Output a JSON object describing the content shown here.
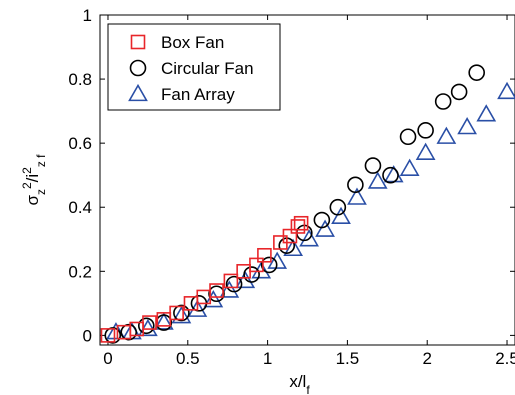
{
  "chart_data": {
    "type": "scatter",
    "xlabel": "x/l",
    "xlabel_sub": "f",
    "ylabel_parts": [
      {
        "t": "σ",
        "s": "base"
      },
      {
        "t": "z",
        "s": "sub"
      },
      {
        "t": "2",
        "s": "sup"
      },
      {
        "t": "/i",
        "s": "base"
      },
      {
        "t": "2",
        "s": "sup"
      },
      {
        "t": "z f",
        "s": "sub"
      }
    ],
    "xlim": [
      -0.05,
      2.55
    ],
    "ylim": [
      -0.03,
      1.0
    ],
    "x_ticks": [
      0,
      0.5,
      1,
      1.5,
      2,
      2.5
    ],
    "x_tick_labels": [
      "0",
      "0.5",
      "1",
      "1.5",
      "2",
      "2.5"
    ],
    "y_ticks": [
      0,
      0.2,
      0.4,
      0.6,
      0.8,
      1
    ],
    "y_tick_labels": [
      "0",
      "0.2",
      "0.4",
      "0.6",
      "0.8",
      "1"
    ],
    "grid": false,
    "legend_position": "top-left",
    "series": [
      {
        "name": "Box Fan",
        "marker": "square",
        "color": "#e8262a",
        "x": [
          0.0,
          0.1,
          0.18,
          0.26,
          0.35,
          0.43,
          0.52,
          0.6,
          0.68,
          0.77,
          0.85,
          0.93,
          0.98,
          1.08,
          1.14,
          1.19,
          1.21
        ],
        "y": [
          0.0,
          0.01,
          0.02,
          0.04,
          0.05,
          0.07,
          0.1,
          0.12,
          0.14,
          0.17,
          0.2,
          0.22,
          0.25,
          0.29,
          0.31,
          0.34,
          0.35
        ]
      },
      {
        "name": "Circular Fan",
        "marker": "circle",
        "color": "#000000",
        "x": [
          0.03,
          0.13,
          0.24,
          0.35,
          0.46,
          0.57,
          0.68,
          0.79,
          0.9,
          1.01,
          1.12,
          1.23,
          1.34,
          1.44,
          1.55,
          1.66,
          1.77,
          1.88,
          1.99,
          2.1,
          2.2,
          2.31
        ],
        "y": [
          0.0,
          0.01,
          0.03,
          0.04,
          0.07,
          0.1,
          0.13,
          0.16,
          0.19,
          0.22,
          0.28,
          0.32,
          0.36,
          0.4,
          0.47,
          0.53,
          0.5,
          0.62,
          0.64,
          0.73,
          0.76,
          0.82
        ]
      },
      {
        "name": "Fan Array",
        "marker": "triangle",
        "color": "#2a4fa6",
        "x": [
          0.05,
          0.15,
          0.25,
          0.35,
          0.46,
          0.56,
          0.66,
          0.76,
          0.86,
          0.96,
          1.06,
          1.16,
          1.26,
          1.36,
          1.46,
          1.56,
          1.69,
          1.79,
          1.89,
          1.99,
          2.12,
          2.25,
          2.37,
          2.5
        ],
        "y": [
          0.01,
          0.01,
          0.02,
          0.04,
          0.06,
          0.08,
          0.11,
          0.14,
          0.17,
          0.2,
          0.23,
          0.27,
          0.3,
          0.33,
          0.37,
          0.43,
          0.48,
          0.5,
          0.52,
          0.57,
          0.62,
          0.65,
          0.69,
          0.76
        ]
      }
    ]
  }
}
